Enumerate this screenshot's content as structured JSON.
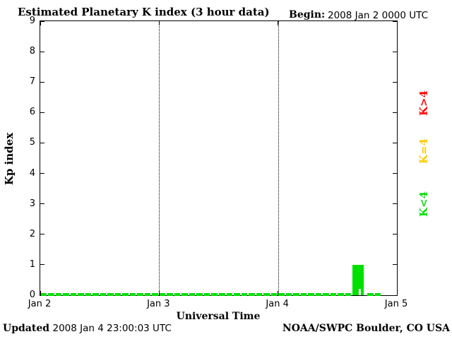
{
  "title": "Estimated Planetary K index (3 hour data)",
  "begin": {
    "label": "Begin:",
    "value": "2008 Jan 2 0000 UTC"
  },
  "axes": {
    "ylabel": "Kp index",
    "xlabel": "Universal Time",
    "y_ticks": [
      "0",
      "1",
      "2",
      "3",
      "4",
      "5",
      "6",
      "7",
      "8",
      "9"
    ],
    "x_ticks": [
      "Jan 2",
      "Jan 3",
      "Jan 4",
      "Jan 5"
    ]
  },
  "legend": [
    {
      "label": "K>4",
      "color": "#ff0000"
    },
    {
      "label": "K=4",
      "color": "#ffcc00"
    },
    {
      "label": "K<4",
      "color": "#00e000"
    }
  ],
  "footer": {
    "updated_label": "Updated",
    "updated_value": "2008 Jan  4 23:00:03 UTC",
    "attribution": "NOAA/SWPC Boulder, CO USA"
  },
  "colors": {
    "background": "#ffffff",
    "axis": "#000000",
    "k_lt_4": "#00e000",
    "k_eq_4": "#ffcc00",
    "k_gt_4": "#ff0000"
  },
  "chart_data": {
    "type": "bar",
    "title": "Estimated Planetary K index (3 hour data)",
    "xlabel": "Universal Time",
    "ylabel": "Kp index",
    "ylim": [
      0,
      9
    ],
    "begin": "2008 Jan 2 0000 UTC",
    "interval_hours": 3,
    "slots_per_day": 8,
    "x_day_labels": [
      "Jan 2",
      "Jan 3",
      "Jan 4",
      "Jan 5"
    ],
    "values": [
      0,
      0,
      0,
      0,
      0,
      0,
      0,
      0,
      0,
      0,
      0,
      0,
      0,
      0,
      0,
      0,
      0,
      0,
      0,
      0,
      0,
      1,
      0
    ],
    "grid": "vertical dotted lines at day boundaries",
    "legend_position": "right rotated"
  }
}
